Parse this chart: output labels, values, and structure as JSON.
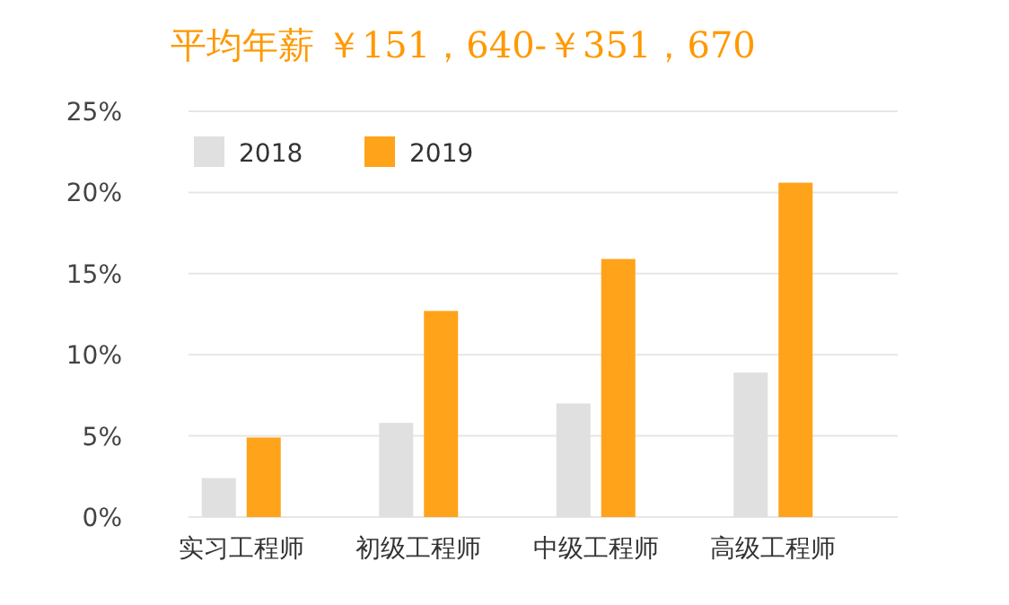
{
  "chart_data": {
    "type": "bar",
    "title": "平均年薪 ￥151，640-￥351，670",
    "categories": [
      "实习工程师",
      "初级工程师",
      "中级工程师",
      "高级工程师"
    ],
    "series": [
      {
        "name": "2018",
        "color": "#e0e0e0",
        "values": [
          2.4,
          5.8,
          7.0,
          8.9
        ]
      },
      {
        "name": "2019",
        "color": "#ffa31a",
        "values": [
          4.9,
          12.7,
          15.9,
          20.6
        ]
      }
    ],
    "ylim": [
      0,
      25
    ],
    "yticks": [
      {
        "value": 0,
        "label": "0%"
      },
      {
        "value": 5,
        "label": "5%"
      },
      {
        "value": 10,
        "label": "10%"
      },
      {
        "value": 15,
        "label": "15%"
      },
      {
        "value": 20,
        "label": "20%"
      },
      {
        "value": 25,
        "label": "25%"
      }
    ],
    "grid": "y",
    "legend": "top left"
  }
}
